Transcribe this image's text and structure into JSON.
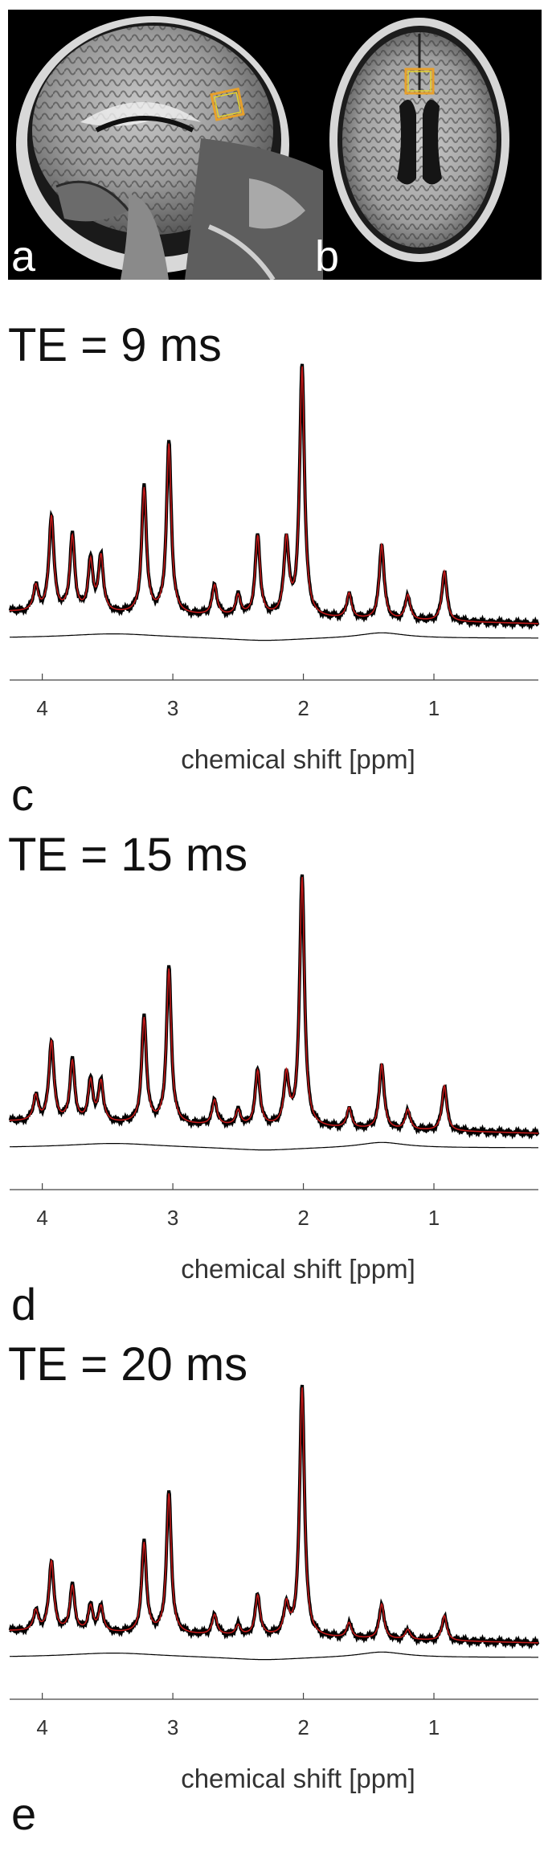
{
  "figure": {
    "mri_panels": [
      {
        "letter": "a",
        "view": "sagittal"
      },
      {
        "letter": "b",
        "view": "axial"
      }
    ],
    "voxel_color": "#e8a02a",
    "fit_color": "#c01818",
    "data_color": "#000000"
  },
  "chart_data": [
    {
      "type": "line",
      "panel": "c",
      "title": "TE = 9 ms",
      "xlabel": "chemical shift [ppm]",
      "xlim": [
        4.25,
        0.2
      ],
      "x_reversed": true,
      "xticks": [
        "4",
        "3",
        "2",
        "1"
      ],
      "series": [
        {
          "role": "measured spectrum",
          "color": "#000000"
        },
        {
          "role": "model fit",
          "color": "#c01818"
        },
        {
          "role": "baseline",
          "color": "#000000"
        }
      ],
      "peaks": [
        {
          "ppm": 4.05,
          "rel": 0.1
        },
        {
          "ppm": 3.93,
          "rel": 0.38
        },
        {
          "ppm": 3.77,
          "rel": 0.3
        },
        {
          "ppm": 3.63,
          "rel": 0.2
        },
        {
          "ppm": 3.55,
          "rel": 0.22
        },
        {
          "ppm": 3.22,
          "rel": 0.5
        },
        {
          "ppm": 3.03,
          "rel": 0.68
        },
        {
          "ppm": 2.68,
          "rel": 0.12
        },
        {
          "ppm": 2.5,
          "rel": 0.08
        },
        {
          "ppm": 2.35,
          "rel": 0.32
        },
        {
          "ppm": 2.13,
          "rel": 0.3
        },
        {
          "ppm": 2.01,
          "rel": 1.0
        },
        {
          "ppm": 1.65,
          "rel": 0.1
        },
        {
          "ppm": 1.4,
          "rel": 0.3
        },
        {
          "ppm": 1.2,
          "rel": 0.1
        },
        {
          "ppm": 0.92,
          "rel": 0.2
        }
      ]
    },
    {
      "type": "line",
      "panel": "d",
      "title": "TE = 15 ms",
      "xlabel": "chemical shift [ppm]",
      "xlim": [
        4.25,
        0.2
      ],
      "x_reversed": true,
      "xticks": [
        "4",
        "3",
        "2",
        "1"
      ],
      "series": [
        {
          "role": "measured spectrum",
          "color": "#000000"
        },
        {
          "role": "model fit",
          "color": "#c01818"
        },
        {
          "role": "baseline",
          "color": "#000000"
        }
      ],
      "peaks": [
        {
          "ppm": 4.05,
          "rel": 0.1
        },
        {
          "ppm": 3.93,
          "rel": 0.32
        },
        {
          "ppm": 3.77,
          "rel": 0.24
        },
        {
          "ppm": 3.63,
          "rel": 0.16
        },
        {
          "ppm": 3.55,
          "rel": 0.16
        },
        {
          "ppm": 3.22,
          "rel": 0.42
        },
        {
          "ppm": 3.03,
          "rel": 0.62
        },
        {
          "ppm": 2.68,
          "rel": 0.1
        },
        {
          "ppm": 2.5,
          "rel": 0.06
        },
        {
          "ppm": 2.35,
          "rel": 0.22
        },
        {
          "ppm": 2.13,
          "rel": 0.2
        },
        {
          "ppm": 2.01,
          "rel": 1.0
        },
        {
          "ppm": 1.65,
          "rel": 0.08
        },
        {
          "ppm": 1.4,
          "rel": 0.26
        },
        {
          "ppm": 1.2,
          "rel": 0.08
        },
        {
          "ppm": 0.92,
          "rel": 0.18
        }
      ]
    },
    {
      "type": "line",
      "panel": "e",
      "title": "TE = 20 ms",
      "xlabel": "chemical shift [ppm]",
      "xlim": [
        4.25,
        0.2
      ],
      "x_reversed": true,
      "xticks": [
        "4",
        "3",
        "2",
        "1"
      ],
      "series": [
        {
          "role": "measured spectrum",
          "color": "#000000"
        },
        {
          "role": "model fit",
          "color": "#c01818"
        },
        {
          "role": "baseline",
          "color": "#000000"
        }
      ],
      "peaks": [
        {
          "ppm": 4.05,
          "rel": 0.08
        },
        {
          "ppm": 3.93,
          "rel": 0.28
        },
        {
          "ppm": 3.77,
          "rel": 0.18
        },
        {
          "ppm": 3.63,
          "rel": 0.1
        },
        {
          "ppm": 3.55,
          "rel": 0.1
        },
        {
          "ppm": 3.22,
          "rel": 0.36
        },
        {
          "ppm": 3.03,
          "rel": 0.56
        },
        {
          "ppm": 2.68,
          "rel": 0.08
        },
        {
          "ppm": 2.5,
          "rel": 0.04
        },
        {
          "ppm": 2.35,
          "rel": 0.16
        },
        {
          "ppm": 2.13,
          "rel": 0.12
        },
        {
          "ppm": 2.01,
          "rel": 1.0
        },
        {
          "ppm": 1.65,
          "rel": 0.06
        },
        {
          "ppm": 1.4,
          "rel": 0.14
        },
        {
          "ppm": 1.2,
          "rel": 0.04
        },
        {
          "ppm": 0.92,
          "rel": 0.1
        }
      ]
    }
  ]
}
